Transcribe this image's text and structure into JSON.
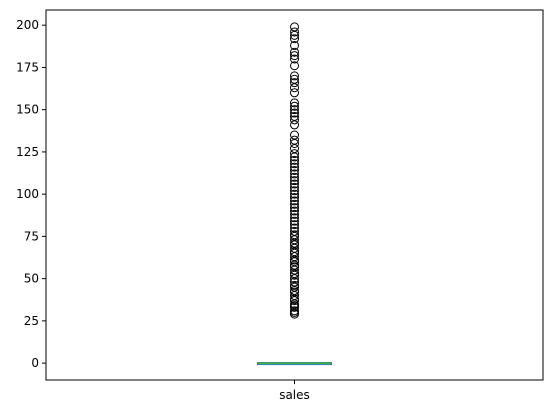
{
  "chart_data": {
    "type": "box",
    "title": "",
    "xlabel": "",
    "ylabel": "",
    "categories": [
      "sales"
    ],
    "ylim": [
      -10,
      209
    ],
    "yticks": [
      0,
      25,
      50,
      75,
      100,
      125,
      150,
      175,
      200
    ],
    "grid": false,
    "series": [
      {
        "category": "sales",
        "q1": 0,
        "median": 0,
        "q3": 0,
        "whisker_low": 0,
        "whisker_high": 0,
        "outliers": [
          29,
          30,
          31,
          33,
          34,
          35,
          37,
          38,
          40,
          42,
          43,
          45,
          46,
          48,
          50,
          52,
          53,
          55,
          57,
          58,
          60,
          61,
          63,
          65,
          66,
          68,
          70,
          71,
          73,
          75,
          76,
          78,
          80,
          82,
          84,
          86,
          88,
          90,
          92,
          94,
          96,
          98,
          100,
          102,
          104,
          106,
          108,
          110,
          112,
          114,
          116,
          118,
          120,
          122,
          124,
          127,
          130,
          132,
          135,
          141,
          144,
          146,
          148,
          150,
          152,
          154,
          160,
          163,
          166,
          168,
          170,
          176,
          180,
          182,
          184,
          188,
          192,
          194,
          196,
          199
        ]
      }
    ]
  },
  "colors": {
    "median": "#2ca02c",
    "box": "#1f77b4",
    "outlier_edge": "#000000",
    "axes": "#000000"
  }
}
